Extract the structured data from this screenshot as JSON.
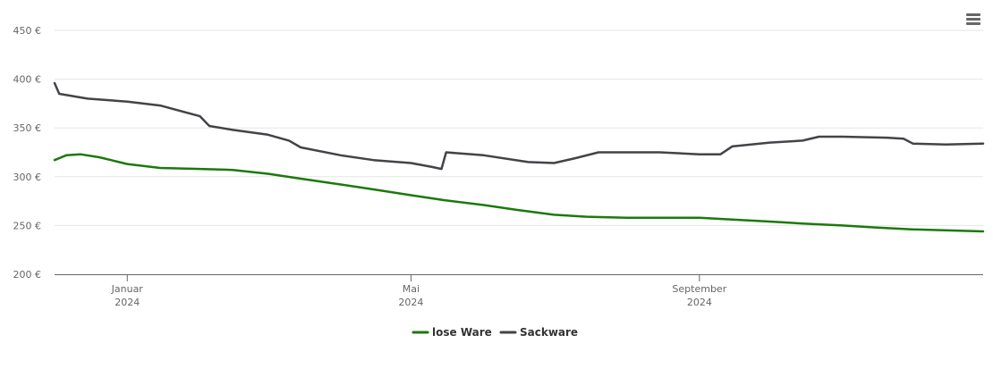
{
  "chart_data": {
    "type": "line",
    "title": "",
    "xlabel": "",
    "ylabel": "",
    "x_domain": [
      "2023-12-01",
      "2024-12-31"
    ],
    "ylim": [
      200,
      450
    ],
    "y_ticks": [
      200,
      250,
      300,
      350,
      400,
      450
    ],
    "y_tick_labels": [
      "200 €",
      "250 €",
      "300 €",
      "350 €",
      "400 €",
      "450 €"
    ],
    "x_ticks": [
      {
        "date": "2024-01-01",
        "line1": "Januar",
        "line2": "2024"
      },
      {
        "date": "2024-05-01",
        "line1": "Mai",
        "line2": "2024"
      },
      {
        "date": "2024-09-01",
        "line1": "September",
        "line2": "2024"
      }
    ],
    "grid": true,
    "legend_position": "bottom-center",
    "series": [
      {
        "name": "lose Ware",
        "color": "#1a7a0a",
        "points": [
          [
            "2023-12-01",
            317
          ],
          [
            "2023-12-06",
            322
          ],
          [
            "2023-12-12",
            323
          ],
          [
            "2023-12-20",
            320
          ],
          [
            "2024-01-01",
            313
          ],
          [
            "2024-01-15",
            309
          ],
          [
            "2024-02-01",
            308
          ],
          [
            "2024-02-15",
            307
          ],
          [
            "2024-03-01",
            303
          ],
          [
            "2024-03-15",
            298
          ],
          [
            "2024-04-01",
            292
          ],
          [
            "2024-04-15",
            287
          ],
          [
            "2024-05-01",
            281
          ],
          [
            "2024-05-15",
            276
          ],
          [
            "2024-06-01",
            271
          ],
          [
            "2024-06-15",
            266
          ],
          [
            "2024-07-01",
            261
          ],
          [
            "2024-07-15",
            259
          ],
          [
            "2024-08-01",
            258
          ],
          [
            "2024-08-15",
            258
          ],
          [
            "2024-09-01",
            258
          ],
          [
            "2024-09-15",
            256
          ],
          [
            "2024-10-01",
            254
          ],
          [
            "2024-10-15",
            252
          ],
          [
            "2024-11-01",
            250
          ],
          [
            "2024-11-15",
            248
          ],
          [
            "2024-12-01",
            246
          ],
          [
            "2024-12-31",
            244
          ]
        ]
      },
      {
        "name": "Sackware",
        "color": "#434348",
        "points": [
          [
            "2023-12-01",
            396
          ],
          [
            "2023-12-03",
            385
          ],
          [
            "2023-12-15",
            380
          ],
          [
            "2024-01-01",
            377
          ],
          [
            "2024-01-15",
            373
          ],
          [
            "2024-02-01",
            362
          ],
          [
            "2024-02-05",
            352
          ],
          [
            "2024-02-15",
            348
          ],
          [
            "2024-03-01",
            343
          ],
          [
            "2024-03-10",
            337
          ],
          [
            "2024-03-15",
            330
          ],
          [
            "2024-04-01",
            322
          ],
          [
            "2024-04-15",
            317
          ],
          [
            "2024-05-01",
            314
          ],
          [
            "2024-05-10",
            310
          ],
          [
            "2024-05-14",
            308
          ],
          [
            "2024-05-16",
            325
          ],
          [
            "2024-06-01",
            322
          ],
          [
            "2024-06-20",
            315
          ],
          [
            "2024-07-01",
            314
          ],
          [
            "2024-07-10",
            319
          ],
          [
            "2024-07-20",
            325
          ],
          [
            "2024-08-15",
            325
          ],
          [
            "2024-09-01",
            323
          ],
          [
            "2024-09-10",
            323
          ],
          [
            "2024-09-15",
            331
          ],
          [
            "2024-10-01",
            335
          ],
          [
            "2024-10-15",
            337
          ],
          [
            "2024-10-22",
            341
          ],
          [
            "2024-11-01",
            341
          ],
          [
            "2024-11-20",
            340
          ],
          [
            "2024-11-27",
            339
          ],
          [
            "2024-12-01",
            334
          ],
          [
            "2024-12-15",
            333
          ],
          [
            "2024-12-31",
            334
          ]
        ]
      }
    ]
  },
  "menu": {
    "icon": "hamburger-menu-icon"
  }
}
